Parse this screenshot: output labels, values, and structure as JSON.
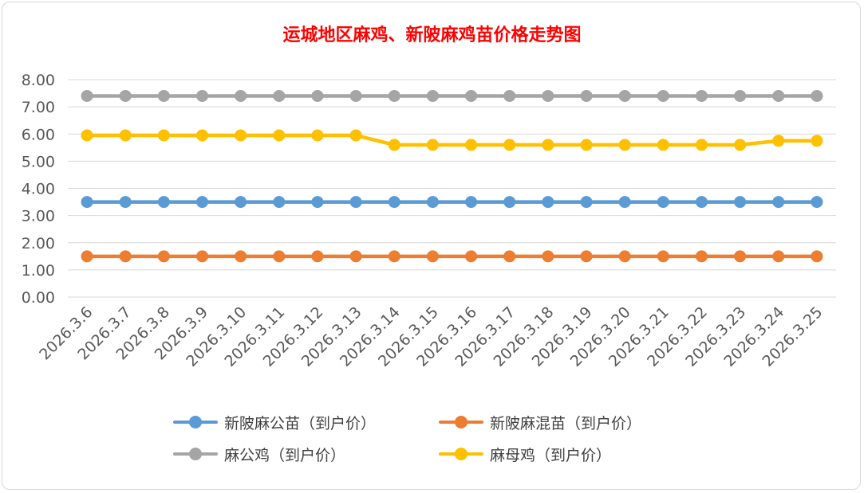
{
  "chart_data": {
    "type": "line",
    "title": "运城地区麻鸡、新陂麻鸡苗价格走势图",
    "categories": [
      "2026.3.6",
      "2026.3.7",
      "2026.3.8",
      "2026.3.9",
      "2026.3.10",
      "2026.3.11",
      "2026.3.12",
      "2026.3.13",
      "2026.3.14",
      "2026.3.15",
      "2026.3.16",
      "2026.3.17",
      "2026.3.18",
      "2026.3.19",
      "2026.3.20",
      "2026.3.21",
      "2026.3.22",
      "2026.3.23",
      "2026.3.24",
      "2026.3.25"
    ],
    "ylim": [
      0,
      8
    ],
    "yticks": [
      "0.00",
      "1.00",
      "2.00",
      "3.00",
      "4.00",
      "5.00",
      "6.00",
      "7.00",
      "8.00"
    ],
    "grid": true,
    "legend_position": "bottom",
    "series": [
      {
        "name": "新陂麻公苗（到户价）",
        "color": "#5b9bd5",
        "values": [
          3.5,
          3.5,
          3.5,
          3.5,
          3.5,
          3.5,
          3.5,
          3.5,
          3.5,
          3.5,
          3.5,
          3.5,
          3.5,
          3.5,
          3.5,
          3.5,
          3.5,
          3.5,
          3.5,
          3.5
        ]
      },
      {
        "name": "新陂麻混苗（到户价）",
        "color": "#ed7d31",
        "values": [
          1.5,
          1.5,
          1.5,
          1.5,
          1.5,
          1.5,
          1.5,
          1.5,
          1.5,
          1.5,
          1.5,
          1.5,
          1.5,
          1.5,
          1.5,
          1.5,
          1.5,
          1.5,
          1.5,
          1.5
        ]
      },
      {
        "name": "麻公鸡（到户价）",
        "color": "#a5a5a5",
        "values": [
          7.4,
          7.4,
          7.4,
          7.4,
          7.4,
          7.4,
          7.4,
          7.4,
          7.4,
          7.4,
          7.4,
          7.4,
          7.4,
          7.4,
          7.4,
          7.4,
          7.4,
          7.4,
          7.4,
          7.4
        ]
      },
      {
        "name": "麻母鸡（到户价）",
        "color": "#ffc000",
        "values": [
          5.95,
          5.95,
          5.95,
          5.95,
          5.95,
          5.95,
          5.95,
          5.95,
          5.6,
          5.6,
          5.6,
          5.6,
          5.6,
          5.6,
          5.6,
          5.6,
          5.6,
          5.6,
          5.75,
          5.75
        ]
      }
    ]
  }
}
